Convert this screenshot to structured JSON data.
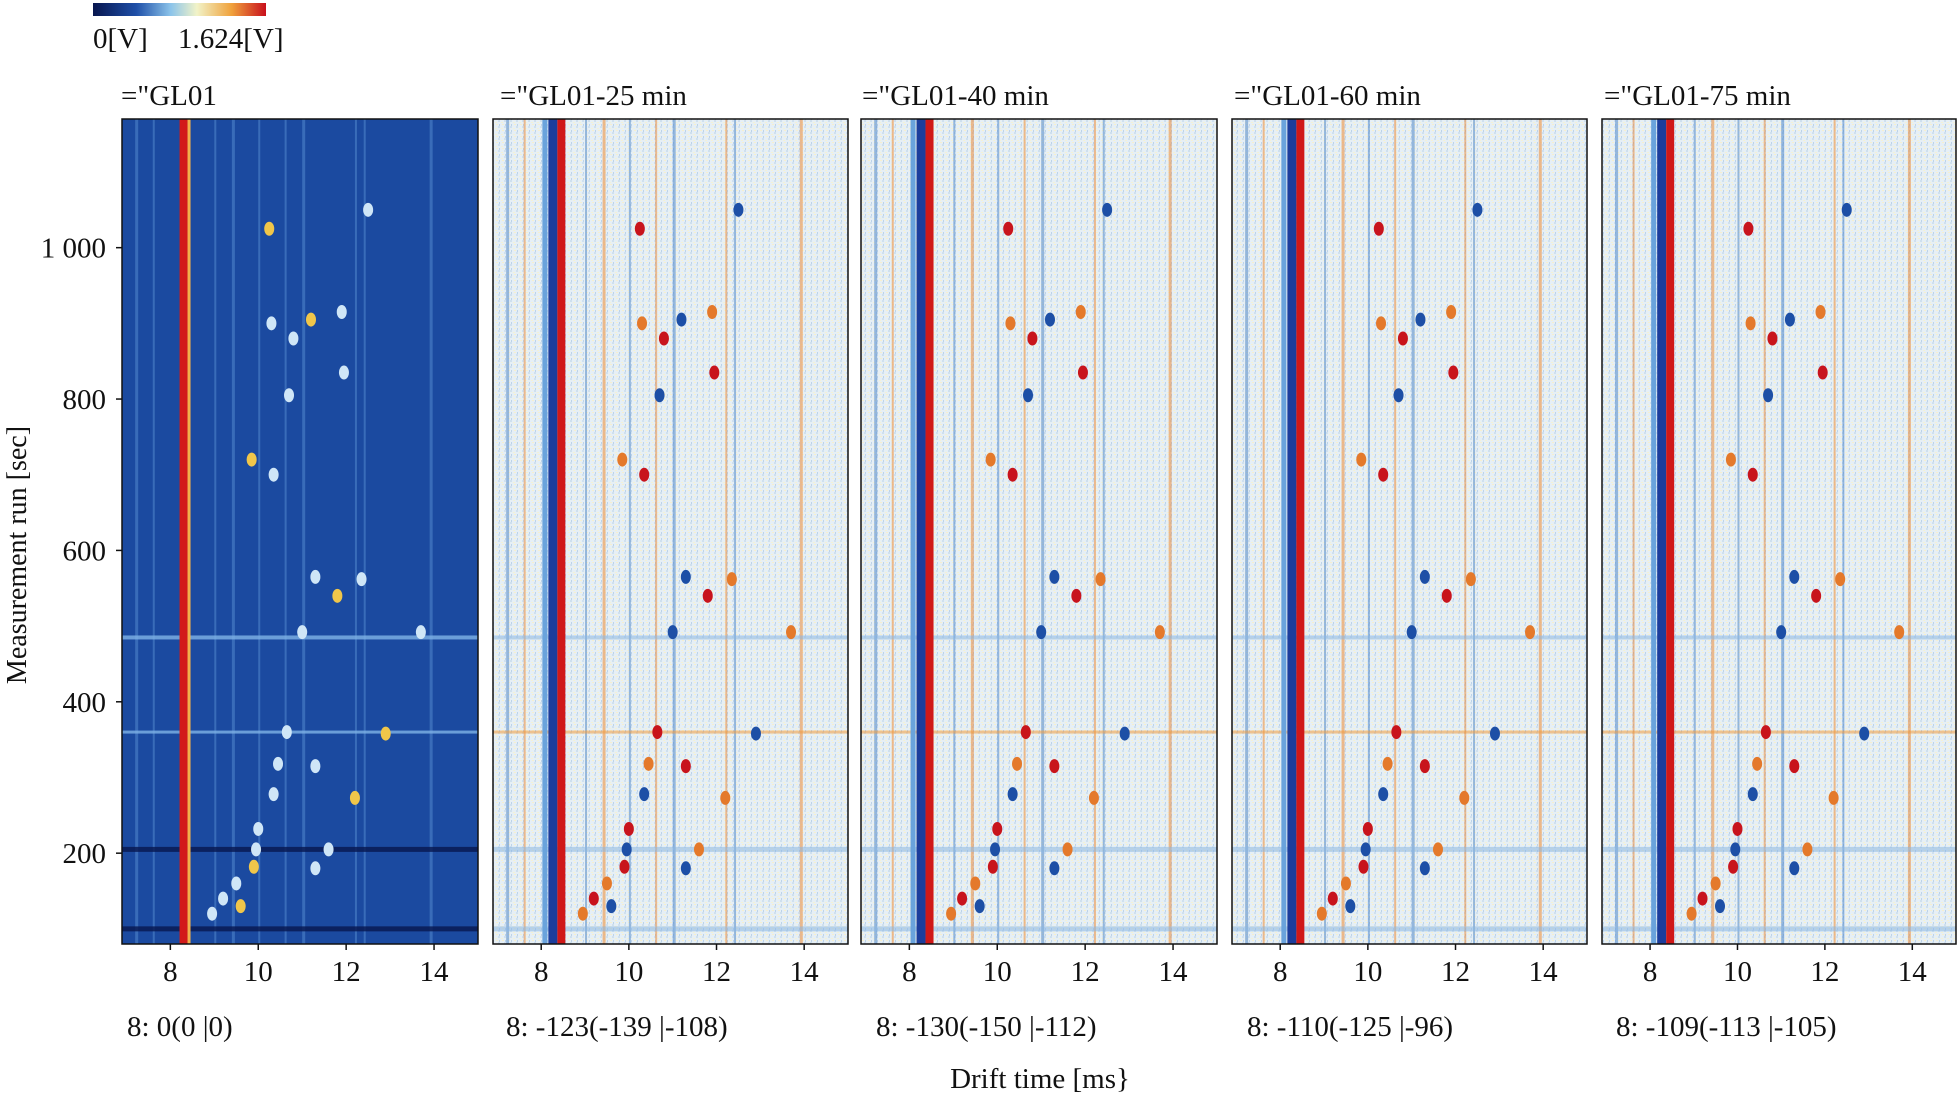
{
  "colorbar": {
    "min_label": "0[V]",
    "max_label": "1.624[V]",
    "stops": [
      "#08164f",
      "#1e4fa8",
      "#8cc4ea",
      "#f1f3c8",
      "#f0a23c",
      "#c8101c"
    ]
  },
  "xlabel": "Drift time [ms}",
  "ylabel": "Measurement run [sec]",
  "y_ticks": [
    "1 000",
    "800",
    "600",
    "400",
    "200"
  ],
  "x_ticks": [
    "8",
    "10",
    "12",
    "14"
  ],
  "chart_data": {
    "type": "heatmap",
    "xlabel": "Drift time [ms}",
    "ylabel": "Measurement run [sec]",
    "xlim": [
      6.9,
      15.0
    ],
    "ylim": [
      80,
      1170
    ],
    "x_ticks": [
      8,
      10,
      12,
      14
    ],
    "y_ticks": [
      200,
      400,
      600,
      800,
      1000
    ],
    "colorbar": {
      "min": 0,
      "max": 1.624,
      "unit": "V"
    },
    "panels": [
      {
        "title": "=\"GL01",
        "subtitle": "8: 0(0 |0)",
        "mode": "reference"
      },
      {
        "title": "=\"GL01-25 min",
        "subtitle": "8: -123(-139 |-108)",
        "mode": "difference"
      },
      {
        "title": "=\"GL01-40 min",
        "subtitle": "8: -130(-150 |-112)",
        "mode": "difference"
      },
      {
        "title": "=\"GL01-60 min",
        "subtitle": "8: -110(-125 |-96)",
        "mode": "difference"
      },
      {
        "title": "=\"GL01-75 min",
        "subtitle": "8: -109(-113 |-105)",
        "mode": "difference"
      }
    ],
    "reactant_ion_peak_ms": 8.3,
    "spots": [
      {
        "x": 10.25,
        "y": 1025
      },
      {
        "x": 12.5,
        "y": 1050
      },
      {
        "x": 10.3,
        "y": 900
      },
      {
        "x": 10.8,
        "y": 880
      },
      {
        "x": 11.2,
        "y": 905
      },
      {
        "x": 11.9,
        "y": 915
      },
      {
        "x": 11.95,
        "y": 835
      },
      {
        "x": 10.7,
        "y": 805
      },
      {
        "x": 9.85,
        "y": 720
      },
      {
        "x": 10.35,
        "y": 700
      },
      {
        "x": 11.3,
        "y": 565
      },
      {
        "x": 12.35,
        "y": 562
      },
      {
        "x": 11.8,
        "y": 540
      },
      {
        "x": 11.0,
        "y": 492
      },
      {
        "x": 13.7,
        "y": 492
      },
      {
        "x": 10.65,
        "y": 360
      },
      {
        "x": 12.9,
        "y": 358
      },
      {
        "x": 10.45,
        "y": 318
      },
      {
        "x": 11.3,
        "y": 315
      },
      {
        "x": 10.35,
        "y": 278
      },
      {
        "x": 12.2,
        "y": 273
      },
      {
        "x": 10.0,
        "y": 232
      },
      {
        "x": 9.95,
        "y": 205
      },
      {
        "x": 11.6,
        "y": 205
      },
      {
        "x": 9.9,
        "y": 182
      },
      {
        "x": 11.3,
        "y": 180
      },
      {
        "x": 9.5,
        "y": 160
      },
      {
        "x": 9.2,
        "y": 140
      },
      {
        "x": 9.6,
        "y": 130
      },
      {
        "x": 8.95,
        "y": 120
      }
    ]
  }
}
